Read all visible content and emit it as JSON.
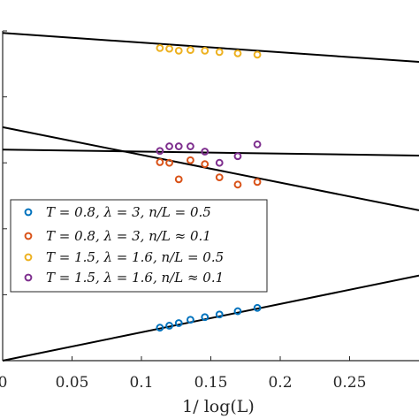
{
  "chart_data": {
    "type": "scatter",
    "xlabel": "1/ log(L)",
    "ylabel": "",
    "title": "",
    "xlim": [
      0,
      0.3
    ],
    "ylim": [
      0,
      5
    ],
    "x_ticks": [
      0,
      0.05,
      0.1,
      0.15,
      0.2,
      0.25
    ],
    "x_tick_labels": [
      "0",
      "0.05",
      "0.1",
      "0.15",
      "0.2",
      "0.25"
    ],
    "y_ticks": [
      0,
      1,
      2,
      3,
      4,
      5
    ],
    "grid": false,
    "legend_placement": "left",
    "series": [
      {
        "name": "T = 0.8, λ = 3, n/L = 0.5",
        "color": "#0072BD",
        "x": [
          0.1133,
          0.1201,
          0.1269,
          0.1353,
          0.1457,
          0.1562,
          0.1694,
          0.1835
        ],
        "y": [
          0.5,
          0.53,
          0.57,
          0.62,
          0.66,
          0.7,
          0.75,
          0.8
        ]
      },
      {
        "name": "T = 0.8, λ = 3, n/L ≈ 0.1",
        "color": "#D95319",
        "x": [
          0.1133,
          0.1201,
          0.1269,
          0.1353,
          0.1457,
          0.1562,
          0.1694,
          0.1835
        ],
        "y": [
          3.01,
          3.0,
          2.75,
          3.04,
          2.98,
          2.78,
          2.67,
          2.71
        ]
      },
      {
        "name": "T = 1.5, λ = 1.6, n/L = 0.5",
        "color": "#EDB120",
        "x": [
          0.1133,
          0.1201,
          0.1269,
          0.1353,
          0.1457,
          0.1562,
          0.1694,
          0.1835
        ],
        "y": [
          4.74,
          4.73,
          4.7,
          4.71,
          4.7,
          4.68,
          4.66,
          4.64
        ]
      },
      {
        "name": "T = 1.5, λ = 1.6, n/L ≈ 0.1",
        "color": "#7E2F8E",
        "x": [
          0.1133,
          0.1201,
          0.1269,
          0.1353,
          0.1457,
          0.1562,
          0.1694,
          0.1835
        ],
        "y": [
          3.18,
          3.25,
          3.25,
          3.25,
          3.17,
          3.0,
          3.1,
          3.28
        ]
      }
    ],
    "fit_lines": [
      {
        "x": [
          0,
          0.3
        ],
        "y": [
          4.97,
          4.53
        ]
      },
      {
        "x": [
          0,
          0.3
        ],
        "y": [
          3.54,
          2.28
        ]
      },
      {
        "x": [
          0,
          0.3
        ],
        "y": [
          3.2,
          3.11
        ]
      },
      {
        "x": [
          0,
          0.3
        ],
        "y": [
          0.0,
          1.29
        ]
      }
    ]
  },
  "legend": {
    "entries": [
      "T = 0.8, λ = 3, n/L = 0.5",
      "T = 0.8, λ = 3, n/L ≈ 0.1",
      "T = 1.5, λ = 1.6, n/L = 0.5",
      "T = 1.5, λ = 1.6, n/L ≈ 0.1"
    ]
  }
}
